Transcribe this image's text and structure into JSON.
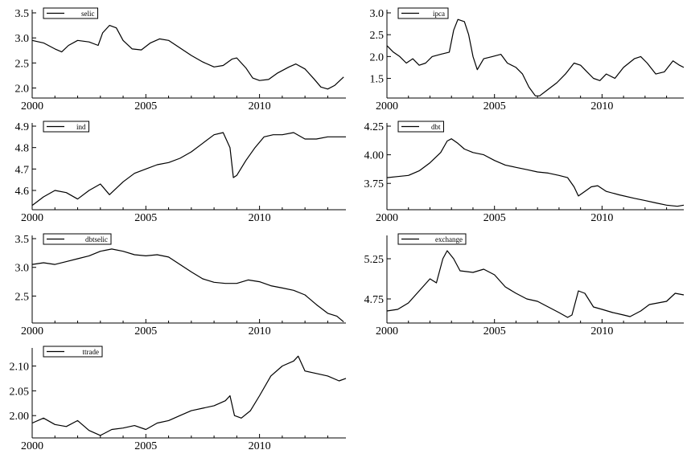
{
  "chart_data": [
    {
      "type": "line",
      "series_name": "selic",
      "xlim": [
        2000,
        2013.8
      ],
      "ylim": [
        1.8,
        3.5
      ],
      "xticks": [
        2000,
        2005,
        2010
      ],
      "yticks": [
        2.0,
        2.5,
        3.0,
        3.5
      ],
      "ytick_labels": [
        "2.0",
        "2.5",
        "3.0",
        "3.5"
      ],
      "legend": "top-left",
      "points": [
        [
          2000,
          2.95
        ],
        [
          2000.5,
          2.9
        ],
        [
          2001,
          2.78
        ],
        [
          2001.3,
          2.72
        ],
        [
          2001.6,
          2.85
        ],
        [
          2002,
          2.95
        ],
        [
          2002.5,
          2.92
        ],
        [
          2002.9,
          2.85
        ],
        [
          2003.1,
          3.1
        ],
        [
          2003.4,
          3.25
        ],
        [
          2003.7,
          3.2
        ],
        [
          2004,
          2.95
        ],
        [
          2004.4,
          2.78
        ],
        [
          2004.8,
          2.76
        ],
        [
          2005.2,
          2.9
        ],
        [
          2005.6,
          2.98
        ],
        [
          2006,
          2.95
        ],
        [
          2006.5,
          2.8
        ],
        [
          2007,
          2.65
        ],
        [
          2007.5,
          2.52
        ],
        [
          2008,
          2.42
        ],
        [
          2008.4,
          2.45
        ],
        [
          2008.8,
          2.58
        ],
        [
          2009,
          2.6
        ],
        [
          2009.4,
          2.4
        ],
        [
          2009.7,
          2.2
        ],
        [
          2010,
          2.15
        ],
        [
          2010.4,
          2.17
        ],
        [
          2010.8,
          2.3
        ],
        [
          2011.3,
          2.42
        ],
        [
          2011.6,
          2.48
        ],
        [
          2012,
          2.38
        ],
        [
          2012.4,
          2.18
        ],
        [
          2012.7,
          2.02
        ],
        [
          2013,
          1.98
        ],
        [
          2013.3,
          2.05
        ],
        [
          2013.7,
          2.22
        ]
      ]
    },
    {
      "type": "line",
      "series_name": "ipca",
      "xlim": [
        2000,
        2013.8
      ],
      "ylim": [
        1.05,
        3.0
      ],
      "xticks": [
        2000,
        2005,
        2010
      ],
      "yticks": [
        1.5,
        2.0,
        2.5,
        3.0
      ],
      "ytick_labels": [
        "1.5",
        "2.0",
        "2.5",
        "3.0"
      ],
      "legend": "top-left",
      "points": [
        [
          2000,
          2.25
        ],
        [
          2000.3,
          2.1
        ],
        [
          2000.6,
          2.0
        ],
        [
          2000.9,
          1.85
        ],
        [
          2001.2,
          1.95
        ],
        [
          2001.5,
          1.8
        ],
        [
          2001.8,
          1.85
        ],
        [
          2002.1,
          2.0
        ],
        [
          2002.5,
          2.05
        ],
        [
          2002.9,
          2.1
        ],
        [
          2003.1,
          2.6
        ],
        [
          2003.3,
          2.85
        ],
        [
          2003.6,
          2.8
        ],
        [
          2003.8,
          2.5
        ],
        [
          2004,
          2.0
        ],
        [
          2004.2,
          1.7
        ],
        [
          2004.5,
          1.95
        ],
        [
          2004.9,
          2.0
        ],
        [
          2005.3,
          2.05
        ],
        [
          2005.6,
          1.85
        ],
        [
          2006,
          1.75
        ],
        [
          2006.3,
          1.6
        ],
        [
          2006.6,
          1.3
        ],
        [
          2006.9,
          1.1
        ],
        [
          2007.1,
          1.1
        ],
        [
          2007.5,
          1.25
        ],
        [
          2007.9,
          1.4
        ],
        [
          2008.3,
          1.6
        ],
        [
          2008.7,
          1.85
        ],
        [
          2009,
          1.8
        ],
        [
          2009.3,
          1.65
        ],
        [
          2009.6,
          1.5
        ],
        [
          2009.9,
          1.45
        ],
        [
          2010.2,
          1.6
        ],
        [
          2010.6,
          1.5
        ],
        [
          2011,
          1.75
        ],
        [
          2011.5,
          1.95
        ],
        [
          2011.8,
          2.0
        ],
        [
          2012.1,
          1.85
        ],
        [
          2012.5,
          1.6
        ],
        [
          2012.9,
          1.65
        ],
        [
          2013.3,
          1.9
        ],
        [
          2013.6,
          1.8
        ],
        [
          2013.8,
          1.75
        ]
      ]
    },
    {
      "type": "line",
      "series_name": "ind",
      "xlim": [
        2000,
        2013.8
      ],
      "ylim": [
        4.51,
        4.9
      ],
      "xticks": [
        2000,
        2005,
        2010
      ],
      "yticks": [
        4.6,
        4.7,
        4.8,
        4.9
      ],
      "ytick_labels": [
        "4.6",
        "4.7",
        "4.8",
        "4.9"
      ],
      "legend": "top-left",
      "points": [
        [
          2000,
          4.53
        ],
        [
          2000.5,
          4.57
        ],
        [
          2001,
          4.6
        ],
        [
          2001.5,
          4.59
        ],
        [
          2002,
          4.56
        ],
        [
          2002.5,
          4.6
        ],
        [
          2003,
          4.63
        ],
        [
          2003.4,
          4.58
        ],
        [
          2004,
          4.64
        ],
        [
          2004.5,
          4.68
        ],
        [
          2005,
          4.7
        ],
        [
          2005.5,
          4.72
        ],
        [
          2006,
          4.73
        ],
        [
          2006.5,
          4.75
        ],
        [
          2007,
          4.78
        ],
        [
          2007.5,
          4.82
        ],
        [
          2008,
          4.86
        ],
        [
          2008.4,
          4.87
        ],
        [
          2008.7,
          4.8
        ],
        [
          2008.85,
          4.66
        ],
        [
          2009,
          4.67
        ],
        [
          2009.4,
          4.74
        ],
        [
          2009.8,
          4.8
        ],
        [
          2010.2,
          4.85
        ],
        [
          2010.6,
          4.86
        ],
        [
          2011,
          4.86
        ],
        [
          2011.5,
          4.87
        ],
        [
          2012,
          4.84
        ],
        [
          2012.5,
          4.84
        ],
        [
          2013,
          4.85
        ],
        [
          2013.5,
          4.85
        ],
        [
          2013.8,
          4.85
        ]
      ]
    },
    {
      "type": "line",
      "series_name": "dbt",
      "xlim": [
        2000,
        2013.8
      ],
      "ylim": [
        3.52,
        4.25
      ],
      "xticks": [
        2000,
        2005,
        2010
      ],
      "yticks": [
        3.75,
        4.0,
        4.25
      ],
      "ytick_labels": [
        "3.75",
        "4.00",
        "4.25"
      ],
      "legend": "top-left",
      "points": [
        [
          2000,
          3.8
        ],
        [
          2000.5,
          3.81
        ],
        [
          2001,
          3.82
        ],
        [
          2001.5,
          3.86
        ],
        [
          2002,
          3.93
        ],
        [
          2002.5,
          4.02
        ],
        [
          2002.8,
          4.12
        ],
        [
          2003,
          4.14
        ],
        [
          2003.3,
          4.1
        ],
        [
          2003.6,
          4.05
        ],
        [
          2004,
          4.02
        ],
        [
          2004.5,
          4.0
        ],
        [
          2005,
          3.95
        ],
        [
          2005.5,
          3.91
        ],
        [
          2006,
          3.89
        ],
        [
          2006.5,
          3.87
        ],
        [
          2007,
          3.85
        ],
        [
          2007.5,
          3.84
        ],
        [
          2008,
          3.82
        ],
        [
          2008.4,
          3.8
        ],
        [
          2008.7,
          3.72
        ],
        [
          2008.9,
          3.64
        ],
        [
          2009.2,
          3.68
        ],
        [
          2009.5,
          3.72
        ],
        [
          2009.8,
          3.73
        ],
        [
          2010.2,
          3.68
        ],
        [
          2010.8,
          3.65
        ],
        [
          2011.5,
          3.62
        ],
        [
          2012,
          3.6
        ],
        [
          2012.5,
          3.58
        ],
        [
          2013,
          3.56
        ],
        [
          2013.5,
          3.55
        ],
        [
          2013.8,
          3.56
        ]
      ]
    },
    {
      "type": "line",
      "series_name": "dbtselic",
      "xlim": [
        2000,
        2013.8
      ],
      "ylim": [
        2.03,
        3.5
      ],
      "xticks": [
        2000,
        2005,
        2010
      ],
      "yticks": [
        2.5,
        3.0,
        3.5
      ],
      "ytick_labels": [
        "2.5",
        "3.0",
        "3.5"
      ],
      "legend": "top-left",
      "points": [
        [
          2000,
          3.05
        ],
        [
          2000.5,
          3.08
        ],
        [
          2001,
          3.05
        ],
        [
          2001.5,
          3.1
        ],
        [
          2002,
          3.15
        ],
        [
          2002.5,
          3.2
        ],
        [
          2003,
          3.28
        ],
        [
          2003.5,
          3.32
        ],
        [
          2004,
          3.28
        ],
        [
          2004.5,
          3.22
        ],
        [
          2005,
          3.2
        ],
        [
          2005.5,
          3.22
        ],
        [
          2006,
          3.18
        ],
        [
          2006.5,
          3.05
        ],
        [
          2007,
          2.92
        ],
        [
          2007.5,
          2.8
        ],
        [
          2008,
          2.74
        ],
        [
          2008.5,
          2.72
        ],
        [
          2009,
          2.72
        ],
        [
          2009.5,
          2.78
        ],
        [
          2010,
          2.75
        ],
        [
          2010.5,
          2.68
        ],
        [
          2011,
          2.64
        ],
        [
          2011.5,
          2.6
        ],
        [
          2012,
          2.52
        ],
        [
          2012.5,
          2.35
        ],
        [
          2013,
          2.2
        ],
        [
          2013.4,
          2.15
        ],
        [
          2013.7,
          2.05
        ]
      ]
    },
    {
      "type": "line",
      "series_name": "exchange",
      "xlim": [
        2000,
        2013.8
      ],
      "ylim": [
        4.45,
        5.5
      ],
      "xticks": [
        2000,
        2005,
        2010
      ],
      "yticks": [
        4.75,
        5.25
      ],
      "ytick_labels": [
        "4.75",
        "5.25"
      ],
      "legend": "top-left",
      "points": [
        [
          2000,
          4.6
        ],
        [
          2000.5,
          4.62
        ],
        [
          2001,
          4.7
        ],
        [
          2001.5,
          4.85
        ],
        [
          2002,
          5.0
        ],
        [
          2002.3,
          4.95
        ],
        [
          2002.6,
          5.25
        ],
        [
          2002.8,
          5.35
        ],
        [
          2003.1,
          5.25
        ],
        [
          2003.4,
          5.1
        ],
        [
          2004,
          5.08
        ],
        [
          2004.5,
          5.12
        ],
        [
          2005,
          5.05
        ],
        [
          2005.5,
          4.9
        ],
        [
          2006,
          4.82
        ],
        [
          2006.5,
          4.75
        ],
        [
          2007,
          4.72
        ],
        [
          2007.5,
          4.65
        ],
        [
          2008,
          4.58
        ],
        [
          2008.4,
          4.52
        ],
        [
          2008.6,
          4.55
        ],
        [
          2008.9,
          4.85
        ],
        [
          2009.2,
          4.82
        ],
        [
          2009.6,
          4.65
        ],
        [
          2010,
          4.62
        ],
        [
          2010.5,
          4.58
        ],
        [
          2011,
          4.55
        ],
        [
          2011.3,
          4.53
        ],
        [
          2011.8,
          4.6
        ],
        [
          2012.2,
          4.68
        ],
        [
          2012.6,
          4.7
        ],
        [
          2013,
          4.72
        ],
        [
          2013.4,
          4.82
        ],
        [
          2013.8,
          4.8
        ]
      ]
    },
    {
      "type": "line",
      "series_name": "ttrade",
      "xlim": [
        2000,
        2013.8
      ],
      "ylim": [
        1.955,
        2.13
      ],
      "xticks": [
        2000,
        2005,
        2010
      ],
      "yticks": [
        2.0,
        2.05,
        2.1
      ],
      "ytick_labels": [
        "2.00",
        "2.05",
        "2.10"
      ],
      "legend": "top-left",
      "points": [
        [
          2000,
          1.985
        ],
        [
          2000.5,
          1.995
        ],
        [
          2001,
          1.982
        ],
        [
          2001.5,
          1.978
        ],
        [
          2002,
          1.99
        ],
        [
          2002.5,
          1.97
        ],
        [
          2003,
          1.96
        ],
        [
          2003.5,
          1.972
        ],
        [
          2004,
          1.975
        ],
        [
          2004.5,
          1.98
        ],
        [
          2005,
          1.972
        ],
        [
          2005.5,
          1.985
        ],
        [
          2006,
          1.99
        ],
        [
          2006.5,
          2.0
        ],
        [
          2007,
          2.01
        ],
        [
          2007.5,
          2.015
        ],
        [
          2008,
          2.02
        ],
        [
          2008.5,
          2.03
        ],
        [
          2008.7,
          2.04
        ],
        [
          2008.9,
          2.0
        ],
        [
          2009.2,
          1.995
        ],
        [
          2009.6,
          2.01
        ],
        [
          2010,
          2.04
        ],
        [
          2010.5,
          2.08
        ],
        [
          2011,
          2.1
        ],
        [
          2011.5,
          2.11
        ],
        [
          2011.7,
          2.12
        ],
        [
          2012,
          2.09
        ],
        [
          2012.5,
          2.085
        ],
        [
          2013,
          2.08
        ],
        [
          2013.5,
          2.07
        ],
        [
          2013.8,
          2.075
        ]
      ]
    }
  ]
}
